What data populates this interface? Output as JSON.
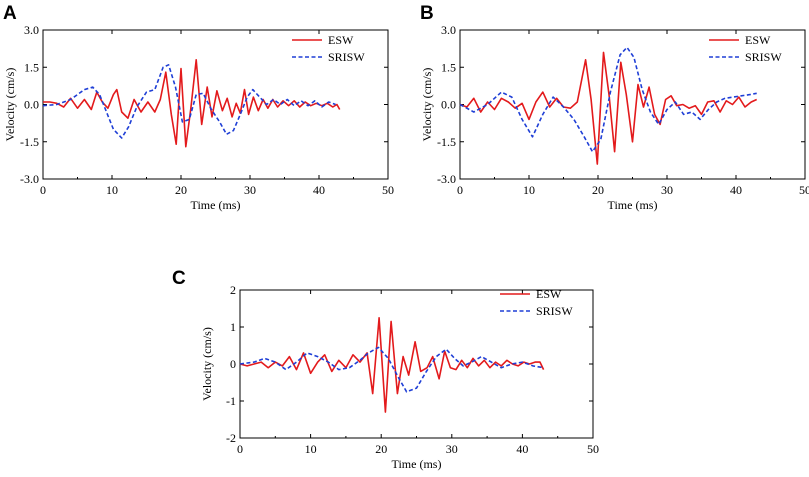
{
  "chart_data": [
    {
      "panel": "A",
      "type": "line",
      "xlabel": "Time (ms)",
      "ylabel": "Velocity (cm/s)",
      "xlim": [
        0,
        50
      ],
      "ylim": [
        -3.0,
        3.0
      ],
      "xticks": [
        0,
        10,
        20,
        30,
        40,
        50
      ],
      "xtick_labels": [
        "0",
        "10",
        "20",
        "30",
        "40",
        "50"
      ],
      "yticks": [
        -3.0,
        -1.5,
        0.0,
        1.5,
        3.0
      ],
      "ytick_labels": [
        "-3.0",
        "-1.5",
        "0.0",
        "1.5",
        "3.0"
      ],
      "legend": {
        "position": "top-right",
        "entries": [
          "ESW",
          "SRISW"
        ]
      },
      "series": [
        {
          "name": "ESW",
          "color": "#e31a1c",
          "style": "solid",
          "x": [
            0,
            1,
            2,
            3,
            4,
            5,
            6,
            7,
            7.8,
            8.6,
            9.4,
            10.2,
            10.7,
            11.4,
            12.3,
            13.2,
            14.2,
            15.2,
            16.2,
            17.0,
            17.8,
            18.6,
            19.3,
            20.0,
            20.7,
            21.4,
            22.2,
            23.0,
            23.8,
            24.5,
            25.2,
            26.0,
            26.7,
            27.4,
            28.0,
            28.6,
            29.2,
            29.8,
            30.5,
            31.2,
            31.9,
            32.6,
            33.3,
            34.0,
            34.8,
            35.6,
            36.4,
            37.2,
            38.0,
            38.8,
            39.6,
            40.4,
            41.2,
            42.0,
            42.6,
            43.0
          ],
          "y": [
            0.1,
            0.1,
            0.05,
            -0.1,
            0.25,
            -0.15,
            0.2,
            -0.2,
            0.5,
            0.1,
            -0.15,
            0.4,
            0.6,
            -0.3,
            -0.55,
            0.2,
            -0.3,
            0.1,
            -0.3,
            0.2,
            1.3,
            -0.4,
            -1.6,
            1.45,
            -1.7,
            -0.2,
            1.8,
            -0.8,
            0.7,
            -0.5,
            0.55,
            -0.25,
            0.25,
            -0.5,
            0.05,
            -0.35,
            0.6,
            -0.4,
            0.3,
            -0.25,
            0.2,
            -0.15,
            0.2,
            -0.1,
            0.15,
            -0.05,
            0.15,
            -0.1,
            0.1,
            -0.05,
            0.05,
            -0.05,
            0.05,
            -0.1,
            0.0,
            -0.2
          ]
        },
        {
          "name": "SRISW",
          "color": "#1f3fd6",
          "style": "dashed",
          "x": [
            0,
            2,
            4,
            6,
            7.2,
            8.2,
            9.2,
            10.2,
            11.4,
            12.4,
            13.6,
            15.0,
            16.2,
            17.4,
            18.2,
            19.2,
            20.2,
            21.2,
            22.2,
            23.2,
            24.4,
            25.6,
            26.6,
            27.6,
            28.6,
            29.6,
            30.4,
            31.4,
            32.4,
            33.4,
            34.4,
            35.4,
            36.4,
            37.4,
            38.4,
            39.4,
            40.4,
            41.4,
            42.4
          ],
          "y": [
            -0.05,
            0.0,
            0.2,
            0.6,
            0.7,
            0.4,
            -0.3,
            -1.0,
            -1.35,
            -0.9,
            -0.1,
            0.5,
            0.6,
            1.5,
            1.6,
            0.7,
            -0.7,
            -0.6,
            0.4,
            0.45,
            -0.2,
            -0.7,
            -1.2,
            -1.05,
            -0.4,
            0.3,
            0.6,
            0.3,
            0.0,
            0.2,
            0.0,
            0.2,
            -0.05,
            0.15,
            -0.05,
            0.15,
            -0.1,
            0.1,
            0.0
          ]
        }
      ]
    },
    {
      "panel": "B",
      "type": "line",
      "xlabel": "Time (ms)",
      "ylabel": "Velocity (cm/s)",
      "xlim": [
        0,
        50
      ],
      "ylim": [
        -3.0,
        3.0
      ],
      "xticks": [
        0,
        10,
        20,
        30,
        40,
        50
      ],
      "xtick_labels": [
        "0",
        "10",
        "20",
        "30",
        "40",
        "50"
      ],
      "yticks": [
        -3.0,
        -1.5,
        0.0,
        1.5,
        3.0
      ],
      "ytick_labels": [
        "-3.0",
        "-1.5",
        "0.0",
        "1.5",
        "3.0"
      ],
      "legend": {
        "position": "top-right",
        "entries": [
          "ESW",
          "SRISW"
        ]
      },
      "series": [
        {
          "name": "ESW",
          "color": "#e31a1c",
          "style": "solid",
          "x": [
            0,
            1,
            2,
            3,
            4,
            5,
            6,
            7,
            8,
            9,
            10,
            11,
            12,
            13,
            14,
            15,
            16,
            17,
            18.2,
            19.0,
            19.9,
            20.8,
            21.6,
            22.4,
            23.3,
            24.1,
            25.0,
            25.8,
            26.6,
            27.4,
            28.2,
            29.0,
            29.8,
            30.6,
            31.4,
            32.3,
            33.2,
            34.1,
            35.0,
            35.9,
            36.8,
            37.7,
            38.6,
            39.5,
            40.4,
            41.3,
            42.2,
            43.0
          ],
          "y": [
            0.0,
            -0.1,
            0.25,
            -0.3,
            0.1,
            -0.2,
            0.25,
            0.1,
            -0.15,
            0.05,
            -0.6,
            0.1,
            0.5,
            -0.1,
            0.25,
            -0.1,
            -0.15,
            0.1,
            1.8,
            0.2,
            -2.4,
            2.1,
            0.4,
            -1.9,
            1.7,
            0.4,
            -1.5,
            0.8,
            -0.1,
            0.7,
            -0.4,
            -0.8,
            0.2,
            0.35,
            -0.05,
            0.0,
            -0.15,
            -0.05,
            -0.4,
            0.1,
            0.15,
            -0.3,
            0.15,
            0.0,
            0.3,
            -0.1,
            0.1,
            0.2
          ]
        },
        {
          "name": "SRISW",
          "color": "#1f3fd6",
          "style": "dashed",
          "x": [
            0,
            2,
            4,
            6,
            7.5,
            9,
            10.5,
            12,
            13.5,
            15,
            16.5,
            18,
            19.2,
            20.4,
            21.8,
            23.2,
            24.2,
            25.2,
            26.4,
            27.6,
            28.8,
            30,
            31.2,
            32.4,
            33.6,
            34.8,
            36,
            37.2,
            38.4,
            39.6,
            40.8,
            42,
            43
          ],
          "y": [
            0.0,
            -0.3,
            0.0,
            0.5,
            0.3,
            -0.6,
            -1.3,
            -0.4,
            0.3,
            -0.1,
            -0.6,
            -1.3,
            -1.9,
            -1.4,
            0.5,
            2.0,
            2.3,
            1.9,
            0.6,
            -0.3,
            -0.8,
            -0.2,
            0.1,
            -0.4,
            -0.3,
            -0.6,
            -0.2,
            0.1,
            0.25,
            0.3,
            0.35,
            0.4,
            0.45
          ]
        }
      ]
    },
    {
      "panel": "C",
      "type": "line",
      "xlabel": "Time (ms)",
      "ylabel": "Velocity (cm/s)",
      "xlim": [
        0,
        50
      ],
      "ylim": [
        -2,
        2
      ],
      "xticks": [
        0,
        10,
        20,
        30,
        40,
        50
      ],
      "xtick_labels": [
        "0",
        "10",
        "20",
        "30",
        "40",
        "50"
      ],
      "yticks": [
        -2,
        -1,
        0,
        1,
        2
      ],
      "ytick_labels": [
        "-2",
        "-1",
        "0",
        "1",
        "2"
      ],
      "legend": {
        "position": "top-right",
        "entries": [
          "ESW",
          "SRISW"
        ]
      },
      "series": [
        {
          "name": "ESW",
          "color": "#e31a1c",
          "style": "solid",
          "x": [
            0,
            1,
            2,
            3,
            4,
            5,
            6,
            7,
            8,
            9,
            10,
            11,
            12,
            13,
            14,
            15,
            16,
            17,
            18,
            18.8,
            19.7,
            20.6,
            21.4,
            22.3,
            23.1,
            23.9,
            24.8,
            25.6,
            26.5,
            27.3,
            28.2,
            29.0,
            29.8,
            30.6,
            31.4,
            32.2,
            33.0,
            33.8,
            34.6,
            35.4,
            36.2,
            37.0,
            37.8,
            38.6,
            39.4,
            40.2,
            41.0,
            41.8,
            42.5,
            43.0
          ],
          "y": [
            0.0,
            -0.05,
            0.0,
            0.05,
            -0.1,
            0.05,
            -0.05,
            0.2,
            -0.15,
            0.3,
            -0.25,
            0.05,
            0.25,
            -0.2,
            0.1,
            -0.1,
            0.25,
            0.05,
            0.3,
            -0.8,
            1.25,
            -1.3,
            1.15,
            -0.8,
            0.2,
            -0.3,
            0.6,
            -0.2,
            -0.1,
            0.2,
            -0.4,
            0.35,
            -0.1,
            -0.15,
            0.1,
            -0.1,
            0.15,
            -0.05,
            0.1,
            -0.1,
            0.05,
            -0.05,
            0.1,
            0.0,
            -0.05,
            0.05,
            0.0,
            0.05,
            0.05,
            -0.15
          ]
        },
        {
          "name": "SRISW",
          "color": "#1f3fd6",
          "style": "dashed",
          "x": [
            0,
            2,
            3.5,
            5,
            6.5,
            8,
            9.5,
            11,
            12.5,
            14,
            15.5,
            17,
            18.2,
            19.6,
            21,
            22.4,
            23.6,
            25,
            26.4,
            27.8,
            29.2,
            30.4,
            31.6,
            32.8,
            34.2,
            35.6,
            37,
            38.5,
            40,
            41.5,
            43
          ],
          "y": [
            0.0,
            0.05,
            0.15,
            0.05,
            -0.15,
            0.05,
            0.3,
            0.2,
            0.05,
            -0.15,
            -0.1,
            0.1,
            0.3,
            0.45,
            0.15,
            -0.35,
            -0.75,
            -0.65,
            -0.2,
            0.2,
            0.4,
            0.15,
            -0.05,
            0.05,
            0.2,
            0.05,
            -0.1,
            0.0,
            0.05,
            -0.05,
            -0.1
          ]
        }
      ]
    }
  ]
}
